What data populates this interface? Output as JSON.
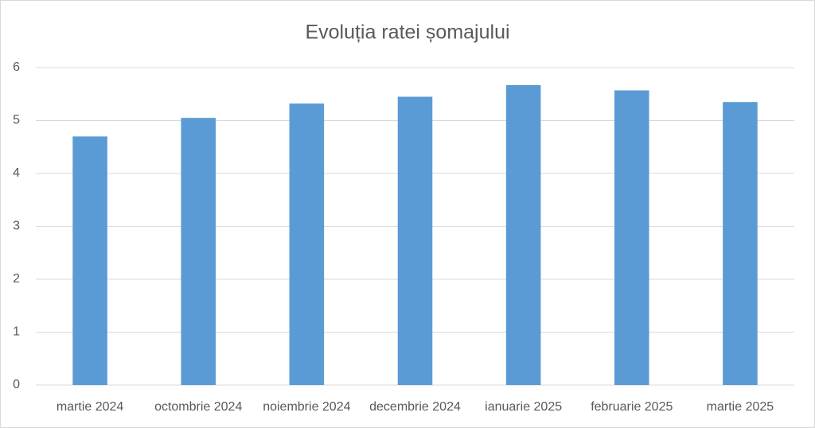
{
  "chart_data": {
    "type": "bar",
    "title": "Evoluția ratei șomajului",
    "categories": [
      "martie 2024",
      "octombrie 2024",
      "noiembrie 2024",
      "decembrie 2024",
      "ianuarie 2025",
      "februarie 2025",
      "martie 2025"
    ],
    "values": [
      4.7,
      5.05,
      5.32,
      5.45,
      5.67,
      5.57,
      5.35
    ],
    "color": "#5b9bd5",
    "ylim": [
      0,
      6
    ],
    "yticks": [
      0,
      1,
      2,
      3,
      4,
      5,
      6
    ],
    "grid": true
  }
}
